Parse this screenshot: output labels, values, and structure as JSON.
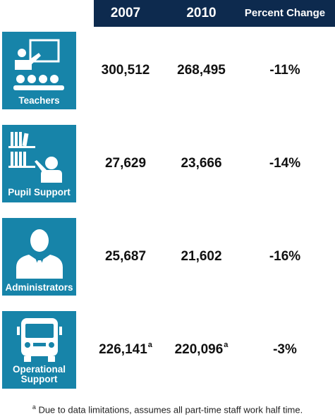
{
  "header": {
    "col1": "2007",
    "col2": "2010",
    "col3": "Percent Change"
  },
  "rows": [
    {
      "label": "Teachers",
      "icon": "teacher-classroom-icon",
      "v2007": "300,512",
      "v2010": "268,495",
      "change": "-11%"
    },
    {
      "label": "Pupil Support",
      "icon": "bookshelf-person-icon",
      "v2007": "27,629",
      "v2010": "23,666",
      "change": "-14%"
    },
    {
      "label": "Administrators",
      "icon": "administrator-person-icon",
      "v2007": "25,687",
      "v2010": "21,602",
      "change": "-16%"
    },
    {
      "label1": "Operational",
      "label2": "Support",
      "icon": "school-bus-icon",
      "v2007": "226,141",
      "v2007_note": "a",
      "v2010": "220,096",
      "v2010_note": "a",
      "change": "-3%"
    }
  ],
  "footnote": {
    "marker": "a",
    "text": " Due to data limitations, assumes all part-time staff work half time."
  },
  "colors": {
    "header_bg": "#0d2a4e",
    "tile_bg": "#1784a9"
  }
}
